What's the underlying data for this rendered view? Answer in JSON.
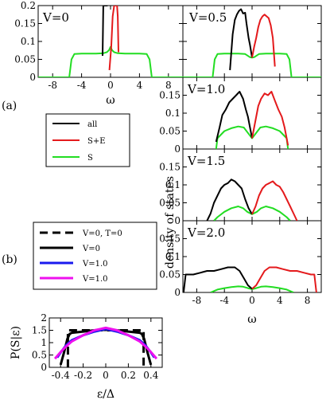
{
  "colors": {
    "all": "#000000",
    "se": "#e41a1c",
    "s": "#22dd22",
    "blue": "#1a1aee",
    "magenta": "#ee10ee"
  },
  "figure_labels": {
    "a": "(a)",
    "b": "(b)"
  },
  "legend_a": [
    {
      "label": "all",
      "color": "#000000",
      "dash": "solid"
    },
    {
      "label": "S+E",
      "color": "#e41a1c",
      "dash": "solid"
    },
    {
      "label": "S",
      "color": "#22dd22",
      "dash": "solid"
    }
  ],
  "legend_b": [
    {
      "label": "V=0, T=0",
      "color": "#000000",
      "dash": "dashed"
    },
    {
      "label": "V=0",
      "color": "#000000",
      "dash": "solid"
    },
    {
      "label": "V=1.0",
      "color": "#1a1aee",
      "dash": "solid"
    },
    {
      "label": "V=1.0",
      "color": "#ee10ee",
      "dash": "solid"
    }
  ],
  "right_ylabel": "density of states",
  "chart_data": [
    {
      "id": "p0",
      "type": "line",
      "panel_label": "V=0",
      "xlabel": "ω",
      "ylabel": "",
      "xlim": [
        -10,
        10
      ],
      "ylim": [
        0,
        0.2
      ],
      "xticks": [
        -8,
        -4,
        0,
        4,
        8
      ],
      "xticklabels": [
        "-8",
        "-4",
        "0",
        "4",
        "8"
      ],
      "yticks": [
        0,
        0.05,
        0.1,
        0.15,
        0.2
      ],
      "yticklabels": [
        "0",
        "0.05",
        "0.1",
        "0.15",
        "0.2"
      ],
      "series": [
        {
          "key": "s",
          "x": [
            -10,
            -5.7,
            -5.4,
            -5.0,
            -4.0,
            -2.0,
            -1.0,
            -0.5,
            -0.2,
            0,
            0.2,
            0.5,
            1.0,
            2.0,
            4.0,
            5.0,
            5.4,
            5.7,
            10
          ],
          "y": [
            0,
            0,
            0.05,
            0.065,
            0.066,
            0.066,
            0.067,
            0.07,
            0.076,
            0.085,
            0.076,
            0.07,
            0.067,
            0.066,
            0.066,
            0.065,
            0.05,
            0,
            0
          ]
        },
        {
          "key": "all",
          "x": [
            -1.1,
            -1.05,
            -1.0,
            -0.7,
            -0.4
          ],
          "y": [
            0.06,
            0.12,
            0.2,
            0.2,
            0.2
          ]
        },
        {
          "key": "se",
          "x": [
            -0.15,
            0.1,
            0.3,
            0.5,
            0.7,
            0.9,
            1.0,
            1.1
          ],
          "y": [
            0.02,
            0.085,
            0.17,
            0.2,
            0.2,
            0.2,
            0.17,
            0.07
          ]
        }
      ]
    },
    {
      "id": "p1",
      "type": "line",
      "panel_label": "V=0.5",
      "xlabel": "",
      "ylabel": "",
      "xlim": [
        -10,
        10
      ],
      "ylim": [
        0,
        0.2
      ],
      "xticks": [
        -8,
        -4,
        0,
        4,
        8
      ],
      "yticks": [
        0,
        0.05,
        0.1,
        0.15,
        0.2
      ],
      "series": [
        {
          "key": "s",
          "x": [
            -10,
            -5.7,
            -5.4,
            -5.0,
            -4.0,
            -2.0,
            -1.0,
            -0.3,
            0,
            0.3,
            1.0,
            2.0,
            4.0,
            5.0,
            5.4,
            5.7,
            10
          ],
          "y": [
            0,
            0,
            0.05,
            0.065,
            0.066,
            0.066,
            0.065,
            0.056,
            0.055,
            0.056,
            0.065,
            0.066,
            0.066,
            0.065,
            0.05,
            0,
            0
          ]
        },
        {
          "key": "all",
          "x": [
            -3.2,
            -2.8,
            -2.5,
            -2.2,
            -1.9,
            -1.6,
            -1.3,
            -1.0,
            -0.8,
            -0.5,
            -0.3,
            0
          ],
          "y": [
            0.02,
            0.12,
            0.16,
            0.175,
            0.185,
            0.19,
            0.178,
            0.18,
            0.15,
            0.11,
            0.09,
            0.055
          ]
        },
        {
          "key": "se",
          "x": [
            0,
            0.3,
            0.6,
            0.9,
            1.2,
            1.5,
            1.8,
            2.1,
            2.4,
            2.7,
            3.0,
            3.3
          ],
          "y": [
            0.055,
            0.085,
            0.11,
            0.14,
            0.16,
            0.17,
            0.175,
            0.17,
            0.165,
            0.145,
            0.11,
            0.03
          ]
        }
      ]
    },
    {
      "id": "p2",
      "type": "line",
      "panel_label": "V=1.0",
      "xlabel": "",
      "ylabel": "",
      "xlim": [
        -10,
        10
      ],
      "ylim": [
        0,
        0.2
      ],
      "xticks": [
        -8,
        -4,
        0,
        4,
        8
      ],
      "yticks": [
        0,
        0.05,
        0.1,
        0.15
      ],
      "yticklabels": [
        "0",
        "0.05",
        "0.1",
        "0.15"
      ],
      "series": [
        {
          "key": "s",
          "x": [
            -5.2,
            -5.0,
            -4.0,
            -3.0,
            -2.0,
            -1.2,
            -0.6,
            0,
            0.6,
            1.2,
            2.0,
            3.0,
            4.0,
            5.0,
            5.2
          ],
          "y": [
            0,
            0.03,
            0.05,
            0.058,
            0.063,
            0.06,
            0.045,
            0.03,
            0.045,
            0.06,
            0.063,
            0.058,
            0.05,
            0.03,
            0
          ]
        },
        {
          "key": "all",
          "x": [
            -5.2,
            -4.7,
            -4.3,
            -3.8,
            -3.3,
            -2.8,
            -2.3,
            -1.8,
            -1.3,
            -0.9,
            -0.6,
            -0.3,
            0
          ],
          "y": [
            0.02,
            0.06,
            0.095,
            0.11,
            0.13,
            0.14,
            0.15,
            0.16,
            0.14,
            0.11,
            0.09,
            0.06,
            0.03
          ]
        },
        {
          "key": "se",
          "x": [
            0,
            0.3,
            0.6,
            0.9,
            1.3,
            1.8,
            2.3,
            2.8,
            3.3,
            3.8,
            4.3,
            4.7,
            5.2
          ],
          "y": [
            0.03,
            0.06,
            0.09,
            0.12,
            0.14,
            0.155,
            0.15,
            0.16,
            0.135,
            0.11,
            0.09,
            0.06,
            0.01
          ]
        }
      ]
    },
    {
      "id": "p3",
      "type": "line",
      "panel_label": "V=1.5",
      "xlabel": "",
      "ylabel": "",
      "xlim": [
        -10,
        10
      ],
      "ylim": [
        0,
        0.2
      ],
      "xticks": [
        -8,
        -4,
        0,
        4,
        8
      ],
      "yticks": [
        0,
        0.05,
        0.1,
        0.15
      ],
      "yticklabels": [
        "0",
        "0.05",
        "0.1",
        "0.15"
      ],
      "series": [
        {
          "key": "s",
          "x": [
            -5.5,
            -5.0,
            -4.0,
            -3.0,
            -2.0,
            -1.3,
            -0.7,
            0,
            0.7,
            1.3,
            2.0,
            3.0,
            4.0,
            5.0,
            5.5
          ],
          "y": [
            0,
            0.01,
            0.025,
            0.035,
            0.04,
            0.035,
            0.025,
            0.018,
            0.025,
            0.035,
            0.04,
            0.035,
            0.025,
            0.01,
            0
          ]
        },
        {
          "key": "all",
          "x": [
            -6.5,
            -6.0,
            -5.5,
            -5.0,
            -4.5,
            -4.0,
            -3.5,
            -3.0,
            -2.5,
            -2.0,
            -1.5,
            -1.0,
            -0.5,
            0
          ],
          "y": [
            0,
            0.02,
            0.05,
            0.07,
            0.09,
            0.1,
            0.105,
            0.115,
            0.11,
            0.1,
            0.09,
            0.06,
            0.035,
            0.018
          ]
        },
        {
          "key": "se",
          "x": [
            0,
            0.5,
            1.0,
            1.5,
            2.0,
            2.5,
            3.0,
            3.5,
            4.0,
            4.5,
            5.0,
            5.5,
            6.0,
            6.5
          ],
          "y": [
            0.018,
            0.04,
            0.07,
            0.09,
            0.1,
            0.105,
            0.11,
            0.1,
            0.095,
            0.08,
            0.06,
            0.04,
            0.02,
            0
          ]
        }
      ]
    },
    {
      "id": "p4",
      "type": "line",
      "panel_label": "V=2.0",
      "xlabel": "ω",
      "ylabel": "",
      "xlim": [
        -10,
        10
      ],
      "ylim": [
        0,
        0.2
      ],
      "xticks": [
        -8,
        -4,
        0,
        4,
        8
      ],
      "xticklabels": [
        "-8",
        "-4",
        "0",
        "4",
        "8"
      ],
      "yticks": [
        0,
        0.05,
        0.1,
        0.15
      ],
      "yticklabels": [
        "0",
        "0.05",
        "0.1",
        "0.15"
      ],
      "series": [
        {
          "key": "s",
          "x": [
            -6.0,
            -5.0,
            -4.0,
            -3.0,
            -2.0,
            -1.3,
            -0.6,
            0,
            0.6,
            1.3,
            2.0,
            3.0,
            4.0,
            5.0,
            6.0
          ],
          "y": [
            0,
            0.008,
            0.012,
            0.015,
            0.017,
            0.016,
            0.012,
            0.009,
            0.012,
            0.016,
            0.017,
            0.015,
            0.012,
            0.008,
            0
          ]
        },
        {
          "key": "all",
          "x": [
            -9.9,
            -9.6,
            -9.3,
            -8.5,
            -7.5,
            -6.5,
            -5.5,
            -4.5,
            -3.5,
            -2.5,
            -1.8,
            -1.2,
            -0.6,
            0
          ],
          "y": [
            0,
            0.05,
            0.05,
            0.05,
            0.055,
            0.06,
            0.06,
            0.065,
            0.07,
            0.07,
            0.06,
            0.04,
            0.02,
            0.01
          ]
        },
        {
          "key": "se",
          "x": [
            0,
            0.6,
            1.2,
            1.8,
            2.5,
            3.5,
            4.5,
            5.5,
            6.5,
            7.5,
            8.5,
            9.0,
            9.3
          ],
          "y": [
            0.01,
            0.02,
            0.04,
            0.06,
            0.07,
            0.07,
            0.065,
            0.06,
            0.06,
            0.055,
            0.05,
            0.05,
            0
          ]
        }
      ]
    },
    {
      "id": "p5",
      "type": "line",
      "panel_label": "",
      "xlabel": "ε/Δ",
      "ylabel": "P(S|ε)",
      "xlim": [
        -0.5,
        0.5
      ],
      "ylim": [
        0,
        2
      ],
      "xticks": [
        -0.4,
        -0.2,
        0,
        0.2,
        0.4
      ],
      "xticklabels": [
        "-0.4",
        "-0.2",
        "0",
        "0.2",
        "0.4"
      ],
      "yticks": [
        0,
        0.5,
        1,
        1.5,
        2
      ],
      "yticklabels": [
        "0",
        "0.5",
        "1",
        "1.5",
        "2"
      ],
      "series": [
        {
          "key": "dashed",
          "x": [
            -0.335,
            -0.335,
            0.335,
            0.335
          ],
          "y": [
            0,
            1.5,
            1.5,
            0
          ]
        },
        {
          "key": "v0",
          "x": [
            -0.4,
            -0.37,
            -0.34,
            -0.32,
            -0.3,
            -0.2,
            -0.1,
            0,
            0.1,
            0.2,
            0.3,
            0.32,
            0.34,
            0.37,
            0.4
          ],
          "y": [
            0.1,
            0.6,
            1.15,
            1.35,
            1.4,
            1.45,
            1.5,
            1.52,
            1.5,
            1.45,
            1.4,
            1.35,
            1.15,
            0.6,
            0.1
          ]
        },
        {
          "key": "v1b",
          "x": [
            -0.43,
            -0.4,
            -0.35,
            -0.3,
            -0.2,
            -0.1,
            0,
            0.1,
            0.2,
            0.3,
            0.35,
            0.4,
            0.43
          ],
          "y": [
            0.4,
            0.6,
            0.9,
            1.1,
            1.3,
            1.45,
            1.55,
            1.45,
            1.3,
            1.1,
            0.9,
            0.6,
            0.4
          ]
        },
        {
          "key": "v1m",
          "x": [
            -0.45,
            -0.4,
            -0.35,
            -0.3,
            -0.2,
            -0.1,
            0,
            0.1,
            0.2,
            0.3,
            0.35,
            0.4,
            0.45
          ],
          "y": [
            0.35,
            0.62,
            0.85,
            1.05,
            1.3,
            1.5,
            1.6,
            1.5,
            1.3,
            1.05,
            0.85,
            0.62,
            0.35
          ]
        }
      ]
    }
  ]
}
